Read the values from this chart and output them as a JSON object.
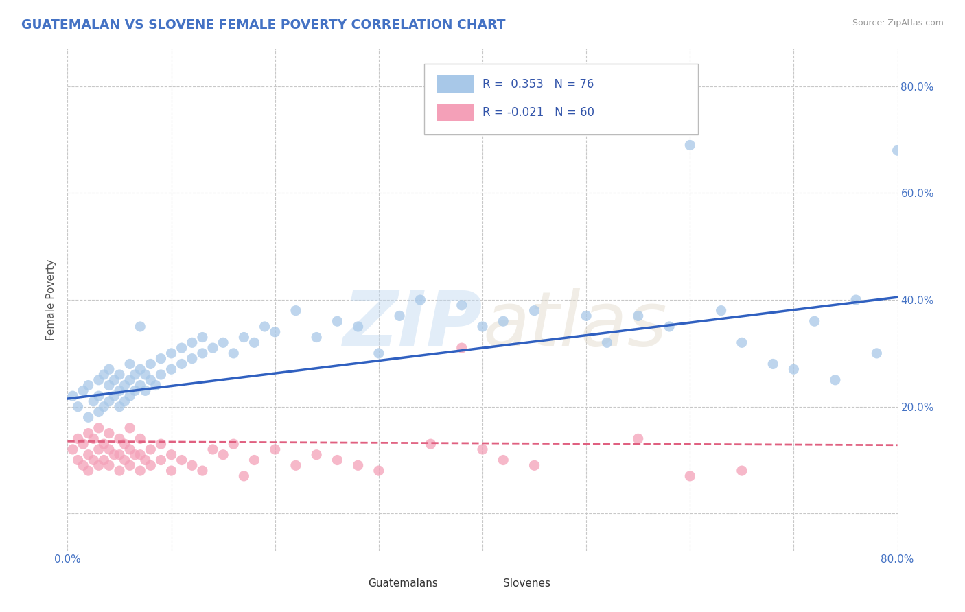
{
  "title": "GUATEMALAN VS SLOVENE FEMALE POVERTY CORRELATION CHART",
  "source_text": "Source: ZipAtlas.com",
  "ylabel": "Female Poverty",
  "xlim": [
    0,
    0.8
  ],
  "ylim": [
    -0.07,
    0.87
  ],
  "r_guatemalan": 0.353,
  "n_guatemalan": 76,
  "r_slovene": -0.021,
  "n_slovene": 60,
  "color_guatemalan": "#A8C8E8",
  "color_slovene": "#F4A0B8",
  "color_guatemalan_line": "#3060C0",
  "color_slovene_line": "#E06080",
  "background_color": "#FFFFFF",
  "grid_color": "#C8C8C8",
  "x_ticks": [
    0.0,
    0.1,
    0.2,
    0.3,
    0.4,
    0.5,
    0.6,
    0.7,
    0.8
  ],
  "y_ticks": [
    0.0,
    0.2,
    0.4,
    0.6,
    0.8
  ],
  "y_tick_labels_right": [
    "",
    "20.0%",
    "40.0%",
    "60.0%",
    "80.0%"
  ],
  "guatemalan_x": [
    0.005,
    0.01,
    0.015,
    0.02,
    0.02,
    0.025,
    0.03,
    0.03,
    0.03,
    0.035,
    0.035,
    0.04,
    0.04,
    0.04,
    0.045,
    0.045,
    0.05,
    0.05,
    0.05,
    0.055,
    0.055,
    0.06,
    0.06,
    0.06,
    0.065,
    0.065,
    0.07,
    0.07,
    0.07,
    0.075,
    0.075,
    0.08,
    0.08,
    0.085,
    0.09,
    0.09,
    0.1,
    0.1,
    0.11,
    0.11,
    0.12,
    0.12,
    0.13,
    0.13,
    0.14,
    0.15,
    0.16,
    0.17,
    0.18,
    0.19,
    0.2,
    0.22,
    0.24,
    0.26,
    0.28,
    0.3,
    0.32,
    0.34,
    0.38,
    0.4,
    0.42,
    0.45,
    0.5,
    0.52,
    0.55,
    0.58,
    0.6,
    0.63,
    0.65,
    0.68,
    0.7,
    0.72,
    0.74,
    0.76,
    0.78,
    0.8
  ],
  "guatemalan_y": [
    0.22,
    0.2,
    0.23,
    0.18,
    0.24,
    0.21,
    0.19,
    0.25,
    0.22,
    0.2,
    0.26,
    0.21,
    0.24,
    0.27,
    0.22,
    0.25,
    0.2,
    0.23,
    0.26,
    0.21,
    0.24,
    0.22,
    0.25,
    0.28,
    0.23,
    0.26,
    0.35,
    0.24,
    0.27,
    0.23,
    0.26,
    0.25,
    0.28,
    0.24,
    0.26,
    0.29,
    0.27,
    0.3,
    0.28,
    0.31,
    0.29,
    0.32,
    0.3,
    0.33,
    0.31,
    0.32,
    0.3,
    0.33,
    0.32,
    0.35,
    0.34,
    0.38,
    0.33,
    0.36,
    0.35,
    0.3,
    0.37,
    0.4,
    0.39,
    0.35,
    0.36,
    0.38,
    0.37,
    0.32,
    0.37,
    0.35,
    0.69,
    0.38,
    0.32,
    0.28,
    0.27,
    0.36,
    0.25,
    0.4,
    0.3,
    0.68
  ],
  "slovene_x": [
    0.005,
    0.01,
    0.01,
    0.015,
    0.015,
    0.02,
    0.02,
    0.02,
    0.025,
    0.025,
    0.03,
    0.03,
    0.03,
    0.035,
    0.035,
    0.04,
    0.04,
    0.04,
    0.045,
    0.05,
    0.05,
    0.05,
    0.055,
    0.055,
    0.06,
    0.06,
    0.06,
    0.065,
    0.07,
    0.07,
    0.07,
    0.075,
    0.08,
    0.08,
    0.09,
    0.09,
    0.1,
    0.1,
    0.11,
    0.12,
    0.13,
    0.14,
    0.15,
    0.16,
    0.17,
    0.18,
    0.2,
    0.22,
    0.24,
    0.26,
    0.28,
    0.3,
    0.35,
    0.38,
    0.4,
    0.42,
    0.45,
    0.55,
    0.6,
    0.65
  ],
  "slovene_y": [
    0.12,
    0.1,
    0.14,
    0.09,
    0.13,
    0.08,
    0.11,
    0.15,
    0.1,
    0.14,
    0.09,
    0.12,
    0.16,
    0.1,
    0.13,
    0.09,
    0.12,
    0.15,
    0.11,
    0.08,
    0.11,
    0.14,
    0.1,
    0.13,
    0.09,
    0.12,
    0.16,
    0.11,
    0.08,
    0.11,
    0.14,
    0.1,
    0.09,
    0.12,
    0.1,
    0.13,
    0.08,
    0.11,
    0.1,
    0.09,
    0.08,
    0.12,
    0.11,
    0.13,
    0.07,
    0.1,
    0.12,
    0.09,
    0.11,
    0.1,
    0.09,
    0.08,
    0.13,
    0.31,
    0.12,
    0.1,
    0.09,
    0.14,
    0.07,
    0.08
  ],
  "blue_line_x0": 0.0,
  "blue_line_y0": 0.215,
  "blue_line_x1": 0.8,
  "blue_line_y1": 0.405,
  "pink_line_x0": 0.0,
  "pink_line_y0": 0.135,
  "pink_line_x1": 0.8,
  "pink_line_y1": 0.128
}
